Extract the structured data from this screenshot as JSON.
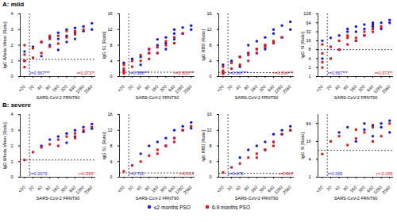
{
  "chart_data": [
    {
      "type": "scatter",
      "title": "A: mild",
      "log": "x",
      "legend": "bottom",
      "x_label": "SARS-CoV-2 FRNT90",
      "y_label": "IgG Whole-Virion [Ratio]",
      "xlim": [
        7,
        3500
      ],
      "xticks": [
        {
          "value": 10,
          "label": "<20"
        },
        20,
        40,
        80,
        160,
        320,
        640,
        1280,
        2560
      ],
      "ylim": [
        0,
        4
      ],
      "yticks": [
        0,
        1,
        2,
        3,
        4
      ],
      "thresholds": {
        "x": 15,
        "y": 1.1
      },
      "series": [
        {
          "name": "≤2 months PSO",
          "color": "#1a1adb",
          "marker": "circle",
          "x": [
            10,
            10,
            20,
            40,
            40,
            80,
            80,
            160,
            160,
            160,
            320,
            320,
            320,
            640,
            640,
            640,
            1280,
            1280,
            2560,
            2560
          ],
          "values": [
            1.0,
            1.6,
            1.9,
            2.2,
            1.3,
            2.5,
            2.0,
            2.8,
            2.4,
            1.7,
            3.0,
            2.6,
            2.2,
            3.1,
            2.8,
            2.4,
            3.2,
            2.9,
            3.4,
            3.0
          ]
        },
        {
          "name": "6-9 months PSO",
          "color": "#d7191c",
          "marker": "square",
          "x": [
            10,
            10,
            10,
            10,
            20,
            20,
            40,
            40,
            80,
            80,
            80,
            160,
            160,
            320,
            320,
            640,
            640,
            1280
          ],
          "values": [
            0.6,
            1.0,
            1.4,
            2.0,
            1.2,
            1.8,
            1.5,
            2.2,
            2.4,
            1.9,
            2.6,
            2.6,
            2.1,
            2.9,
            2.5,
            2.9,
            2.7,
            3.0
          ]
        }
      ],
      "annotations": [
        {
          "text": "r=0.567***",
          "color": "#1a1adb"
        },
        {
          "text": "r=0.373**",
          "color": "#d7191c"
        }
      ]
    },
    {
      "type": "scatter",
      "log": "x",
      "x_label": "SARS-CoV-2 FRNT90",
      "y_label": "IgG S1 [Ratio]",
      "xlim": [
        7,
        3500
      ],
      "xticks": [
        {
          "value": 10,
          "label": "<20"
        },
        20,
        40,
        80,
        160,
        320,
        640,
        1280,
        2560
      ],
      "ylim": [
        0,
        16
      ],
      "yticks": [
        0,
        4,
        8,
        12,
        16
      ],
      "thresholds": {
        "x": 15,
        "y": 1.1
      },
      "series": [
        {
          "name": "≤2 months PSO",
          "color": "#1a1adb",
          "marker": "circle",
          "x": [
            10,
            10,
            20,
            40,
            40,
            80,
            80,
            160,
            160,
            160,
            320,
            320,
            320,
            640,
            640,
            640,
            1280,
            1280,
            2560,
            2560
          ],
          "values": [
            1.5,
            3.5,
            4.5,
            5,
            3,
            7,
            6,
            8,
            9.5,
            6,
            10,
            8.5,
            7,
            11,
            9.5,
            12,
            11,
            12.5,
            12,
            13
          ]
        },
        {
          "name": "6-9 months PSO",
          "color": "#d7191c",
          "marker": "square",
          "x": [
            10,
            10,
            10,
            10,
            20,
            20,
            40,
            40,
            80,
            80,
            80,
            160,
            160,
            320,
            320,
            640,
            640,
            1280
          ],
          "values": [
            0.8,
            1.2,
            2,
            3,
            2.5,
            4,
            4,
            5.5,
            6,
            4.5,
            7,
            7.5,
            6,
            9,
            8,
            10,
            8.5,
            11
          ]
        }
      ],
      "annotations": [
        {
          "text": "r=0.588***",
          "color": "#1a1adb"
        },
        {
          "text": "r=0.803***",
          "color": "#d7191c"
        }
      ]
    },
    {
      "type": "scatter",
      "log": "x",
      "x_label": "SARS-CoV-2 FRNT90",
      "y_label": "IgG RBD [Ratio]",
      "xlim": [
        7,
        3500
      ],
      "xticks": [
        {
          "value": 10,
          "label": "<20"
        },
        20,
        40,
        80,
        160,
        320,
        640,
        1280,
        2560
      ],
      "ylim": [
        0,
        16
      ],
      "yticks": [
        0,
        4,
        8,
        12,
        16
      ],
      "thresholds": {
        "x": 15,
        "y": 1
      },
      "series": [
        {
          "name": "≤2 months PSO",
          "color": "#1a1adb",
          "marker": "circle",
          "x": [
            10,
            10,
            20,
            40,
            40,
            80,
            80,
            160,
            160,
            160,
            320,
            320,
            320,
            640,
            640,
            640,
            1280,
            1280,
            2560,
            2560
          ],
          "values": [
            1.2,
            3,
            4,
            5,
            2.5,
            6,
            8,
            7,
            9,
            6,
            10,
            8,
            7,
            11,
            9,
            12,
            10,
            13,
            12,
            14
          ]
        },
        {
          "name": "6-9 months PSO",
          "color": "#d7191c",
          "marker": "square",
          "x": [
            10,
            10,
            10,
            10,
            20,
            20,
            40,
            40,
            80,
            80,
            80,
            160,
            160,
            320,
            320,
            640,
            640,
            1280
          ],
          "values": [
            0.7,
            1,
            1.5,
            2.5,
            2,
            3.5,
            3,
            5,
            5.5,
            4,
            6,
            7,
            6,
            8,
            7.5,
            9,
            8.5,
            10
          ]
        }
      ],
      "annotations": [
        {
          "text": "r=0.567***",
          "color": "#1a1adb"
        },
        {
          "text": "r=0.814***",
          "color": "#d7191c"
        }
      ]
    },
    {
      "type": "scatter",
      "log": true,
      "x_label": "SARS-CoV-2 FRNT90",
      "y_label": "IgG  N [Ratio]",
      "xlim": [
        7,
        3500
      ],
      "xticks": [
        {
          "value": 10,
          "label": "<20"
        },
        20,
        40,
        80,
        160,
        320,
        640,
        1280,
        2560
      ],
      "ylim": [
        1,
        128
      ],
      "yticks": [
        1,
        2,
        4,
        8,
        16,
        32,
        64,
        128
      ],
      "thresholds": {
        "x": 15,
        "y": 8
      },
      "series": [
        {
          "name": "≤2 months PSO",
          "color": "#1a1adb",
          "marker": "circle",
          "x": [
            10,
            10,
            20,
            40,
            40,
            80,
            80,
            160,
            160,
            160,
            320,
            320,
            320,
            640,
            640,
            640,
            1280,
            1280,
            2560,
            2560
          ],
          "values": [
            4,
            16,
            20,
            24,
            8,
            32,
            40,
            32,
            48,
            16,
            56,
            40,
            24,
            64,
            48,
            56,
            64,
            40,
            64,
            80
          ]
        },
        {
          "name": "6-9 months PSO",
          "color": "#d7191c",
          "marker": "square",
          "x": [
            10,
            10,
            10,
            10,
            20,
            20,
            40,
            40,
            80,
            80,
            80,
            160,
            160,
            320,
            320,
            640,
            640,
            1280
          ],
          "values": [
            2,
            3,
            6,
            12,
            4,
            10,
            8,
            16,
            20,
            12,
            24,
            20,
            16,
            32,
            24,
            40,
            32,
            48
          ]
        }
      ],
      "annotations": [
        {
          "text": "r=0.567***",
          "color": "#1a1adb"
        },
        {
          "text": "r=0.373**",
          "color": "#d7191c"
        }
      ]
    },
    {
      "type": "scatter",
      "title": "B: severe",
      "log": "x",
      "x_label": "SARS-CoV-2 FRNT90",
      "y_label": "IgG Whole-Virion [Ratio]",
      "xlim": [
        7,
        3500
      ],
      "xticks": [
        {
          "value": 10,
          "label": "<20"
        },
        20,
        40,
        80,
        160,
        320,
        640,
        1280,
        2560
      ],
      "ylim": [
        0,
        4
      ],
      "yticks": [
        0,
        1,
        2,
        3,
        4
      ],
      "thresholds": {
        "x": 15,
        "y": 1.1
      },
      "series": [
        {
          "name": "≤2 months PSO",
          "color": "#1a1adb",
          "marker": "circle",
          "x": [
            40,
            80,
            160,
            320,
            320,
            640,
            640,
            1280,
            1280,
            2560,
            2560
          ],
          "values": [
            2.0,
            2.4,
            2.6,
            2.8,
            2.2,
            3.0,
            2.6,
            3.2,
            2.9,
            3.4,
            3.1
          ]
        },
        {
          "name": "6-9 months PSO",
          "color": "#d7191c",
          "marker": "square",
          "x": [
            10,
            20,
            40,
            80,
            160,
            160,
            320,
            640,
            640,
            1280,
            2560
          ],
          "values": [
            1.1,
            1.6,
            1.9,
            2.1,
            2.4,
            2.0,
            2.6,
            2.8,
            2.5,
            3.0,
            3.2
          ]
        }
      ],
      "annotations": [
        {
          "text": "r=0.2073",
          "color": "#1a1adb"
        },
        {
          "text": "r=0.596*",
          "color": "#d7191c"
        }
      ]
    },
    {
      "type": "scatter",
      "log": "x",
      "x_label": "SARS-CoV-2 FRNT90",
      "y_label": "IgG S1 [Ratio]",
      "xlim": [
        7,
        3500
      ],
      "xticks": [
        {
          "value": 10,
          "label": "<20"
        },
        20,
        40,
        80,
        160,
        320,
        640,
        1280,
        2560
      ],
      "ylim": [
        0,
        16
      ],
      "yticks": [
        0,
        4,
        8,
        12,
        16
      ],
      "thresholds": {
        "x": 15,
        "y": 1.1
      },
      "series": [
        {
          "name": "≤2 months PSO",
          "color": "#1a1adb",
          "marker": "circle",
          "x": [
            40,
            80,
            160,
            320,
            320,
            640,
            640,
            1280,
            1280,
            2560,
            2560
          ],
          "values": [
            6,
            8,
            9,
            10,
            8,
            12,
            10,
            13,
            12,
            14,
            12.5
          ]
        },
        {
          "name": "6-9 months PSO",
          "color": "#d7191c",
          "marker": "square",
          "x": [
            10,
            20,
            40,
            80,
            160,
            160,
            320,
            640,
            640,
            1280,
            2560
          ],
          "values": [
            1.5,
            3,
            4,
            5.5,
            7,
            6,
            8,
            10,
            9,
            12,
            13
          ]
        }
      ],
      "annotations": [
        {
          "text": "r=0.710",
          "color": "#1a1adb"
        },
        {
          "text": "r=0.614",
          "color": "#d7191c"
        }
      ]
    },
    {
      "type": "scatter",
      "log": "x",
      "x_label": "SARS-CoV-2 FRNT90",
      "y_label": "IgG RBD [Ratio]",
      "xlim": [
        7,
        3500
      ],
      "xticks": [
        {
          "value": 10,
          "label": "<20"
        },
        20,
        40,
        80,
        160,
        320,
        640,
        1280,
        2560
      ],
      "ylim": [
        0,
        16
      ],
      "yticks": [
        0,
        4,
        8,
        12,
        16
      ],
      "thresholds": {
        "x": 15,
        "y": 1
      },
      "series": [
        {
          "name": "≤2 months PSO",
          "color": "#1a1adb",
          "marker": "circle",
          "x": [
            40,
            80,
            160,
            320,
            320,
            640,
            640,
            1280,
            1280,
            2560,
            2560
          ],
          "values": [
            5,
            7,
            8,
            9,
            7,
            11,
            9,
            12,
            11,
            13,
            12
          ]
        },
        {
          "name": "6-9 months PSO",
          "color": "#d7191c",
          "marker": "square",
          "x": [
            10,
            20,
            40,
            80,
            160,
            160,
            320,
            640,
            640,
            1280,
            2560
          ],
          "values": [
            1.2,
            2.5,
            3.5,
            5,
            6,
            5,
            7,
            9,
            8,
            11,
            12
          ]
        }
      ],
      "annotations": [
        {
          "text": "r=0.679",
          "color": "#1a1adb"
        },
        {
          "text": "r=0.807",
          "color": "#d7191c"
        }
      ]
    },
    {
      "type": "scatter",
      "log": true,
      "x_label": "SARS-CoV-2 FRNT90",
      "y_label": "IgG  N [Ratio]",
      "xlim": [
        7,
        3500
      ],
      "xticks": [
        {
          "value": 10,
          "label": "<20"
        },
        20,
        40,
        80,
        160,
        320,
        640,
        1280,
        2560
      ],
      "ylim": [
        1,
        128
      ],
      "yticks": [
        1,
        4,
        16,
        64
      ],
      "thresholds": {
        "x": 15,
        "y": 8
      },
      "series": [
        {
          "name": "≤2 months PSO",
          "color": "#1a1adb",
          "marker": "circle",
          "x": [
            40,
            80,
            160,
            320,
            320,
            640,
            640,
            1280,
            1280,
            2560,
            2560
          ],
          "values": [
            32,
            48,
            16,
            64,
            40,
            56,
            24,
            64,
            48,
            32,
            80
          ]
        },
        {
          "name": "6-9 months PSO",
          "color": "#d7191c",
          "marker": "square",
          "x": [
            10,
            20,
            40,
            80,
            160,
            160,
            320,
            640,
            640,
            1280,
            2560
          ],
          "values": [
            6,
            16,
            24,
            12,
            40,
            20,
            32,
            16,
            48,
            24,
            64
          ]
        }
      ],
      "annotations": [
        {
          "text": "r=0.059",
          "color": "#1a1adb"
        },
        {
          "text": "r=-0.265",
          "color": "#d7191c"
        }
      ]
    }
  ]
}
